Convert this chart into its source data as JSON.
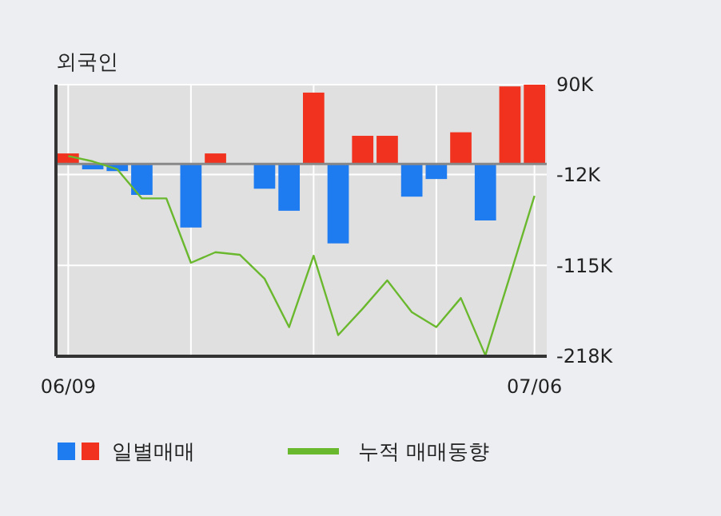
{
  "chart_data": {
    "type": "bar",
    "title": "외국인",
    "categories": [
      "06/09",
      null,
      null,
      null,
      null,
      null,
      null,
      null,
      null,
      null,
      null,
      null,
      null,
      null,
      null,
      null,
      null,
      null,
      null,
      "07/06"
    ],
    "series": [
      {
        "name": "일별매매",
        "colors": [
          "#f0321e",
          "#1e7bf0",
          "#1e7bf0",
          "#1e7bf0",
          "#1e7bf0",
          "#1e7bf0",
          "#f0321e",
          "#1e7bf0",
          "#1e7bf0",
          "#1e7bf0",
          "#f0321e",
          "#1e7bf0",
          "#f0321e",
          "#f0321e",
          "#1e7bf0",
          "#1e7bf0",
          "#f0321e",
          "#1e7bf0",
          "#f0321e",
          "#f0321e"
        ],
        "values": [
          12,
          -6,
          -8,
          -35,
          0,
          -72,
          12,
          0,
          -28,
          -53,
          81,
          -90,
          32,
          32,
          -37,
          -17,
          36,
          -64,
          88,
          90
        ]
      },
      {
        "type": "line",
        "name": "누적 매매동향",
        "color": "#6ab82e",
        "values": [
          9,
          3,
          -6,
          -39,
          -39,
          -112,
          -100,
          -103,
          -130,
          -185,
          -104,
          -194,
          -164,
          -132,
          -168,
          -185,
          -152,
          -217,
          -127,
          -36
        ]
      }
    ],
    "ylim": [
      -218,
      90
    ],
    "yticks": [
      {
        "value": 90,
        "label": "90K"
      },
      {
        "value": -12,
        "label": "-12K"
      },
      {
        "value": -115,
        "label": "-115K"
      },
      {
        "value": -218,
        "label": "-218K"
      }
    ],
    "grid": true,
    "legend": "bottom"
  }
}
